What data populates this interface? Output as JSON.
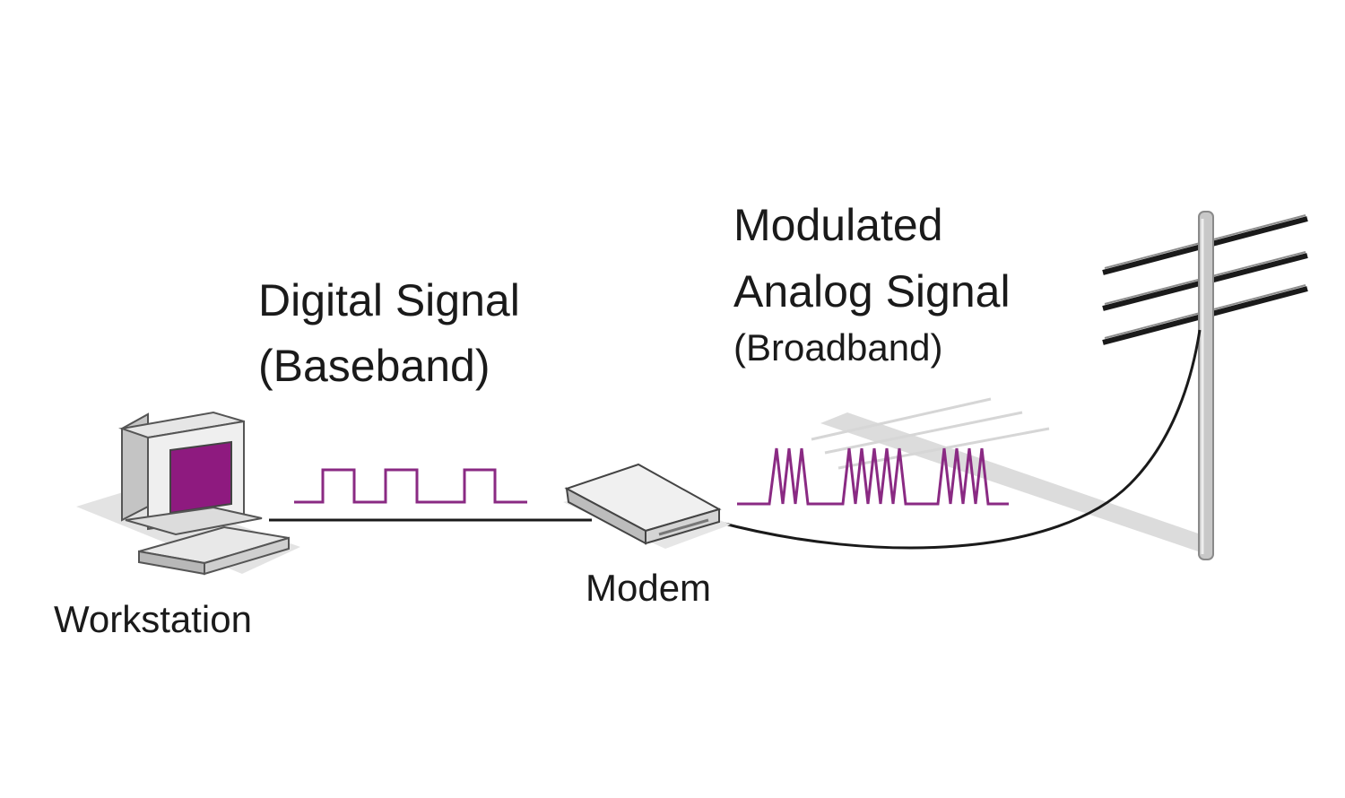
{
  "labels": {
    "digital_signal": "Digital Signal",
    "baseband": "(Baseband)",
    "modulated": "Modulated",
    "analog_signal": "Analog Signal",
    "broadband": "(Broadband)",
    "workstation": "Workstation",
    "modem": "Modem"
  },
  "colors": {
    "signal": "#8a2a83",
    "screen": "#8e1a7f",
    "wire": "#1a1a1a",
    "shadow": "#dcdcdc",
    "device_light": "#f2f2f2",
    "device_mid": "#d0d0d0",
    "device_dark": "#a8a8a8"
  },
  "icons": {
    "workstation": "computer-icon",
    "modem": "modem-icon",
    "pole": "telephone-pole-icon"
  }
}
